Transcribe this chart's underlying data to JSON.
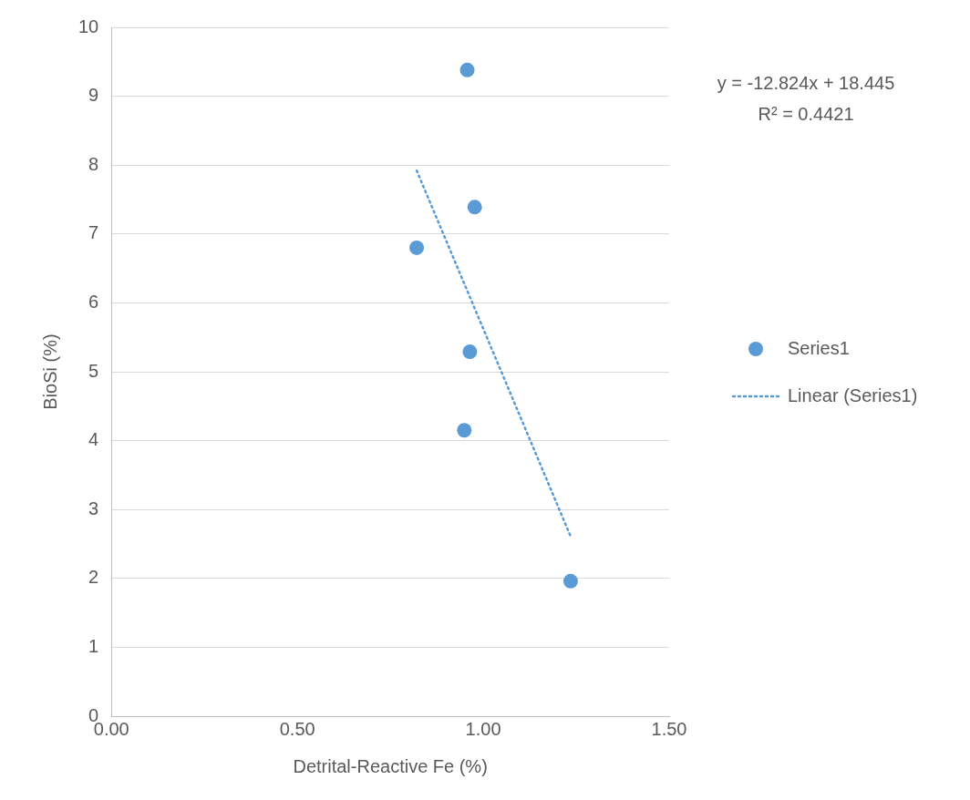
{
  "chart_data": {
    "type": "scatter",
    "xlabel": "Detrital-Reactive Fe (%)",
    "ylabel": "BioSi (%)",
    "series": [
      {
        "name": "Series1",
        "color": "#5b9bd5",
        "marker": "circle",
        "x": [
          0.821,
          0.957,
          0.977,
          0.964,
          0.949,
          1.235
        ],
        "values": [
          6.8,
          9.38,
          7.39,
          5.29,
          4.15,
          1.96
        ]
      },
      {
        "name": "Linear (Series1)",
        "type": "line",
        "color": "#5b9bd5",
        "marker": "none",
        "line_style": "dotted",
        "x": [
          0.821,
          1.235
        ],
        "values": [
          7.92,
          2.61
        ]
      }
    ],
    "xlim": [
      0,
      1.5
    ],
    "xticks": [
      {
        "value": 0,
        "label": "0.00"
      },
      {
        "value": 0.5,
        "label": "0.50"
      },
      {
        "value": 1,
        "label": "1.00"
      },
      {
        "value": 1.5,
        "label": "1.50"
      }
    ],
    "ylim": [
      0,
      10
    ],
    "yticks": [
      0,
      1,
      2,
      3,
      4,
      5,
      6,
      7,
      8,
      9,
      10
    ],
    "grid": "y",
    "legend": "right",
    "annotations": [
      "y = -12.824x + 18.445",
      "R² = 0.4421"
    ]
  }
}
